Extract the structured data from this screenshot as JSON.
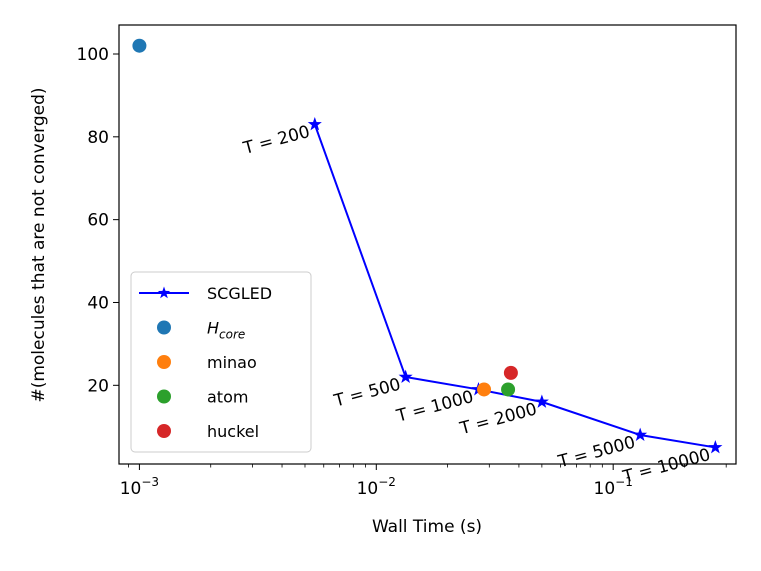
{
  "chart_data": {
    "type": "scatter",
    "xscale": "log",
    "xlabel": "Wall Time (s)",
    "ylabel": "#(molecules that are not converged)",
    "xlim": [
      0.00082,
      0.33
    ],
    "ylim": [
      1,
      107
    ],
    "grid": false,
    "legend_position": "lower-left",
    "x_ticks": [
      {
        "value": 0.001,
        "base": "10",
        "exp": "−3"
      },
      {
        "value": 0.01,
        "base": "10",
        "exp": "−2"
      },
      {
        "value": 0.1,
        "base": "10",
        "exp": "−1"
      }
    ],
    "y_ticks": [
      20,
      40,
      60,
      80,
      100
    ],
    "series": [
      {
        "name": "SCGLED",
        "kind": "line",
        "marker": "star",
        "color": "#0000ff",
        "x": [
          0.0055,
          0.0133,
          0.027,
          0.05,
          0.13,
          0.27
        ],
        "y": [
          83,
          22,
          19,
          16,
          8,
          5
        ],
        "annotations": [
          "T = 200",
          "T = 500",
          "T = 1000",
          "T = 2000",
          "T = 5000",
          "T = 10000"
        ]
      },
      {
        "name": "H",
        "name_sub": "core",
        "kind": "point",
        "color": "#1f77b4",
        "x": [
          0.001
        ],
        "y": [
          102
        ]
      },
      {
        "name": "minao",
        "kind": "point",
        "color": "#ff7f0e",
        "x": [
          0.0285
        ],
        "y": [
          19
        ]
      },
      {
        "name": "atom",
        "kind": "point",
        "color": "#2ca02c",
        "x": [
          0.036
        ],
        "y": [
          19
        ]
      },
      {
        "name": "huckel",
        "kind": "point",
        "color": "#d62728",
        "x": [
          0.037
        ],
        "y": [
          23
        ]
      }
    ]
  }
}
